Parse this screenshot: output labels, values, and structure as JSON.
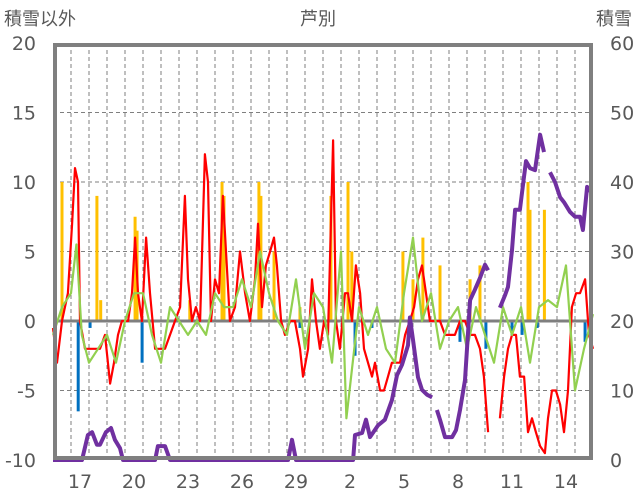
{
  "chart_data": {
    "type": "line",
    "title": "芦別",
    "ylabel_left": "積雪以外",
    "ylabel_right": "積雪",
    "ylim_left": [
      -10,
      20
    ],
    "ylim_right": [
      0,
      60
    ],
    "yticks_left": [
      "-10",
      "-5",
      "0",
      "5",
      "10",
      "15",
      "20"
    ],
    "yticks_right": [
      "0",
      "10",
      "20",
      "30",
      "40",
      "50",
      "60"
    ],
    "xlim_days": [
      0,
      30
    ],
    "xticks": [
      {
        "day": 1.5,
        "label": "17"
      },
      {
        "day": 4.5,
        "label": "20"
      },
      {
        "day": 7.5,
        "label": "23"
      },
      {
        "day": 10.5,
        "label": "26"
      },
      {
        "day": 13.5,
        "label": "29"
      },
      {
        "day": 16.5,
        "label": "2"
      },
      {
        "day": 19.5,
        "label": "5"
      },
      {
        "day": 22.5,
        "label": "8"
      },
      {
        "day": 25.5,
        "label": "11"
      },
      {
        "day": 28.5,
        "label": "14"
      }
    ],
    "grid": true,
    "colors": {
      "red": "#ff0000",
      "green": "#92d050",
      "purple": "#7030a0",
      "yellow": "#ffc000",
      "blue": "#0070c0",
      "axis": "#7f7f7f"
    },
    "series": [
      {
        "name": "yellow-bars",
        "kind": "bar",
        "axis": "left",
        "color": "#ffc000",
        "points": [
          [
            0.5,
            10
          ],
          [
            2.44,
            9
          ],
          [
            2.65,
            1.5
          ],
          [
            4.56,
            7.5
          ],
          [
            4.67,
            6.5
          ],
          [
            7.6,
            1.5
          ],
          [
            9.39,
            10
          ],
          [
            9.5,
            9
          ],
          [
            11.44,
            10
          ],
          [
            11.55,
            9
          ],
          [
            12.28,
            5
          ],
          [
            13.72,
            1
          ],
          [
            15.44,
            9
          ],
          [
            16.39,
            10
          ],
          [
            16.6,
            5
          ],
          [
            19.44,
            5
          ],
          [
            20,
            3
          ],
          [
            20.55,
            6
          ],
          [
            21.5,
            4
          ],
          [
            23.17,
            3
          ],
          [
            23.72,
            4
          ],
          [
            26.39,
            10
          ],
          [
            26.5,
            8
          ],
          [
            27.3,
            8
          ]
        ]
      },
      {
        "name": "blue-bars",
        "kind": "bar",
        "axis": "left",
        "color": "#0070c0",
        "points": [
          [
            1.4,
            -6.5
          ],
          [
            2.06,
            -0.5
          ],
          [
            4.95,
            -3
          ],
          [
            13.72,
            -0.5
          ],
          [
            16.78,
            -2.5
          ],
          [
            17.72,
            -0.5
          ],
          [
            19.83,
            -1
          ],
          [
            22.61,
            -1.5
          ],
          [
            24.05,
            -2
          ],
          [
            25.5,
            -1
          ],
          [
            26.06,
            -1
          ],
          [
            26.9,
            -0.5
          ],
          [
            29.56,
            -1.5
          ]
        ]
      },
      {
        "name": "red-line",
        "kind": "line",
        "axis": "left",
        "color": "#ff0000",
        "points": [
          [
            0,
            -0.5
          ],
          [
            0.22,
            -3
          ],
          [
            0.5,
            0
          ],
          [
            0.83,
            2
          ],
          [
            1.06,
            7
          ],
          [
            1.22,
            11
          ],
          [
            1.39,
            10
          ],
          [
            1.5,
            0
          ],
          [
            1.78,
            -2
          ],
          [
            2.06,
            -2
          ],
          [
            2.33,
            -2
          ],
          [
            2.61,
            -2
          ],
          [
            2.89,
            -1
          ],
          [
            3.17,
            -4.5
          ],
          [
            3.39,
            -3
          ],
          [
            3.61,
            -1
          ],
          [
            3.83,
            0
          ],
          [
            4.17,
            0
          ],
          [
            4.39,
            2
          ],
          [
            4.56,
            6
          ],
          [
            4.72,
            2
          ],
          [
            4.94,
            0
          ],
          [
            5.17,
            6
          ],
          [
            5.39,
            2
          ],
          [
            5.67,
            -2
          ],
          [
            5.94,
            -2
          ],
          [
            6.22,
            -2
          ],
          [
            6.5,
            -1
          ],
          [
            6.78,
            0
          ],
          [
            7.06,
            1
          ],
          [
            7.33,
            9
          ],
          [
            7.5,
            3
          ],
          [
            7.72,
            0
          ],
          [
            7.94,
            1
          ],
          [
            8.17,
            0
          ],
          [
            8.44,
            12
          ],
          [
            8.61,
            10
          ],
          [
            8.78,
            0
          ],
          [
            9,
            3
          ],
          [
            9.22,
            2
          ],
          [
            9.44,
            9
          ],
          [
            9.61,
            5
          ],
          [
            9.83,
            0
          ],
          [
            10.11,
            1
          ],
          [
            10.39,
            5
          ],
          [
            10.67,
            2
          ],
          [
            10.94,
            0
          ],
          [
            11.22,
            3
          ],
          [
            11.39,
            7
          ],
          [
            11.61,
            1
          ],
          [
            11.83,
            4
          ],
          [
            12.06,
            5
          ],
          [
            12.28,
            6
          ],
          [
            12.44,
            4
          ],
          [
            12.67,
            0
          ],
          [
            12.89,
            -1
          ],
          [
            13.17,
            0
          ],
          [
            13.44,
            0
          ],
          [
            13.72,
            -2
          ],
          [
            13.89,
            -4
          ],
          [
            14.17,
            -2
          ],
          [
            14.39,
            3
          ],
          [
            14.61,
            0
          ],
          [
            14.83,
            -2
          ],
          [
            15.06,
            0
          ],
          [
            15.28,
            -1
          ],
          [
            15.56,
            13
          ],
          [
            15.72,
            0
          ],
          [
            15.94,
            -2
          ],
          [
            16.22,
            2
          ],
          [
            16.39,
            2
          ],
          [
            16.61,
            0
          ],
          [
            16.83,
            4
          ],
          [
            17.06,
            2
          ],
          [
            17.28,
            -2
          ],
          [
            17.5,
            -3
          ],
          [
            17.72,
            -4
          ],
          [
            17.89,
            -3
          ],
          [
            18.17,
            -5
          ],
          [
            18.39,
            -5
          ],
          [
            18.61,
            -4
          ],
          [
            18.83,
            -3
          ],
          [
            19.06,
            -3
          ],
          [
            19.28,
            -3
          ],
          [
            19.56,
            -1
          ],
          [
            19.83,
            0
          ],
          [
            20.06,
            1
          ],
          [
            20.28,
            3
          ],
          [
            20.5,
            4
          ],
          [
            20.72,
            2
          ],
          [
            20.94,
            0
          ],
          [
            21.17,
            0
          ],
          [
            21.5,
            0
          ],
          [
            21.78,
            -1
          ],
          [
            22.06,
            -1
          ],
          [
            22.33,
            -1
          ],
          [
            22.61,
            0
          ],
          [
            22.89,
            0
          ],
          [
            23.17,
            -1
          ],
          [
            23.44,
            -1
          ],
          [
            23.72,
            -2
          ],
          [
            23.94,
            -4
          ],
          [
            24.17,
            -8
          ],
          null,
          [
            24.83,
            -7
          ],
          [
            25.06,
            -4
          ],
          [
            25.28,
            -2
          ],
          [
            25.5,
            -1
          ],
          [
            25.72,
            -1
          ],
          [
            25.94,
            -4
          ],
          [
            26.17,
            -4
          ],
          [
            26.39,
            -8
          ],
          [
            26.61,
            -7
          ],
          [
            26.83,
            -8
          ],
          [
            27.06,
            -9
          ],
          [
            27.33,
            -9.5
          ],
          [
            27.5,
            -7
          ],
          [
            27.72,
            -5
          ],
          [
            27.94,
            -5
          ],
          [
            28.17,
            -6
          ],
          [
            28.39,
            -8
          ],
          [
            28.61,
            -5
          ],
          [
            28.83,
            1
          ],
          [
            29.06,
            2
          ],
          [
            29.28,
            2
          ],
          [
            29.56,
            3
          ],
          [
            29.78,
            -1
          ],
          [
            30,
            -2
          ]
        ]
      },
      {
        "name": "green-line",
        "kind": "line",
        "axis": "left",
        "color": "#92d050",
        "points": [
          [
            0,
            -1
          ],
          [
            0.5,
            1
          ],
          [
            1,
            2
          ],
          [
            1.3,
            5.5
          ],
          [
            1.6,
            -1
          ],
          [
            2,
            -3
          ],
          [
            2.5,
            -2
          ],
          [
            3,
            -1
          ],
          [
            3.5,
            -3
          ],
          [
            4,
            0
          ],
          [
            4.5,
            2
          ],
          [
            5,
            2
          ],
          [
            5.5,
            -1
          ],
          [
            6,
            -3
          ],
          [
            6.5,
            1
          ],
          [
            7,
            0
          ],
          [
            7.5,
            -1
          ],
          [
            8,
            0
          ],
          [
            8.5,
            -1
          ],
          [
            9,
            2
          ],
          [
            9.5,
            1
          ],
          [
            10,
            1
          ],
          [
            10.5,
            3
          ],
          [
            11,
            1
          ],
          [
            11.5,
            5
          ],
          [
            12,
            2
          ],
          [
            12.5,
            0
          ],
          [
            13,
            -1
          ],
          [
            13.5,
            3
          ],
          [
            14,
            -2
          ],
          [
            14.5,
            2
          ],
          [
            15,
            1
          ],
          [
            15.5,
            -3
          ],
          [
            16,
            5
          ],
          [
            16.3,
            -7
          ],
          [
            17,
            1
          ],
          [
            17.5,
            -1
          ],
          [
            18,
            1
          ],
          [
            18.5,
            -2
          ],
          [
            19,
            -3
          ],
          [
            19.5,
            2
          ],
          [
            20,
            6
          ],
          [
            20.5,
            0
          ],
          [
            21,
            2
          ],
          [
            21.5,
            -2
          ],
          [
            22,
            0
          ],
          [
            22.5,
            1
          ],
          [
            23,
            -2
          ],
          [
            23.5,
            1
          ],
          [
            24,
            -1
          ],
          [
            24.5,
            -3
          ],
          [
            25,
            1
          ],
          [
            25.5,
            -1
          ],
          [
            26,
            1
          ],
          [
            26.5,
            -3
          ],
          [
            27,
            1
          ],
          [
            27.5,
            1.5
          ],
          [
            28,
            1
          ],
          [
            28.5,
            4
          ],
          [
            29,
            -5
          ],
          [
            29.5,
            -2
          ],
          [
            30,
            0.5
          ]
        ]
      },
      {
        "name": "purple-snow-depth",
        "kind": "line",
        "axis": "right",
        "color": "#7030a0",
        "points": [
          [
            0,
            0
          ],
          [
            1.61,
            0
          ],
          [
            1.94,
            3.6
          ],
          [
            2.17,
            4
          ],
          [
            2.44,
            2.2
          ],
          [
            2.61,
            2.2
          ],
          [
            2.94,
            4
          ],
          [
            3.22,
            4.6
          ],
          [
            3.44,
            2.9
          ],
          [
            3.72,
            1.7
          ],
          [
            3.89,
            0
          ],
          [
            5.67,
            0
          ],
          [
            5.83,
            2
          ],
          [
            6.22,
            2
          ],
          [
            6.5,
            0
          ],
          [
            13.06,
            0
          ],
          [
            13.28,
            2.9
          ],
          [
            13.5,
            0
          ],
          [
            16.67,
            0
          ],
          [
            16.78,
            3.6
          ],
          [
            17.17,
            3.9
          ],
          [
            17.39,
            5.8
          ],
          [
            17.61,
            3.3
          ],
          [
            18.06,
            5
          ],
          [
            18.44,
            5.8
          ],
          [
            18.83,
            8.6
          ],
          [
            19.11,
            12.2
          ],
          [
            19.39,
            13.7
          ],
          [
            19.72,
            16.5
          ],
          [
            19.83,
            20.5
          ],
          [
            20,
            17.3
          ],
          [
            20.28,
            11.9
          ],
          [
            20.5,
            10.1
          ],
          [
            20.78,
            9.4
          ],
          [
            21.06,
            9
          ],
          null,
          [
            21.33,
            7.2
          ],
          [
            21.5,
            5.8
          ],
          [
            21.78,
            3.3
          ],
          [
            22.17,
            3.3
          ],
          [
            22.39,
            4.3
          ],
          [
            22.61,
            7.2
          ],
          [
            22.89,
            11.5
          ],
          [
            23.17,
            23
          ],
          [
            23.44,
            24.5
          ],
          [
            23.72,
            26.2
          ],
          [
            24,
            28.1
          ],
          [
            24.17,
            27.3
          ],
          null,
          [
            24.83,
            21.9
          ],
          [
            25.11,
            23.7
          ],
          [
            25.28,
            24.9
          ],
          [
            25.5,
            30.2
          ],
          [
            25.67,
            36
          ],
          [
            25.94,
            36
          ],
          [
            26.11,
            39.6
          ],
          [
            26.28,
            43
          ],
          [
            26.5,
            42
          ],
          [
            26.78,
            41.7
          ],
          [
            27.06,
            46.8
          ],
          [
            27.28,
            44.3
          ],
          null,
          [
            27.61,
            41.4
          ],
          [
            27.89,
            40
          ],
          [
            28.17,
            37.8
          ],
          [
            28.39,
            37.1
          ],
          [
            28.72,
            35.7
          ],
          [
            29,
            35
          ],
          [
            29.28,
            35
          ],
          [
            29.44,
            33.1
          ],
          [
            29.67,
            39.3
          ],
          [
            29.83,
            38.6
          ]
        ]
      }
    ]
  }
}
